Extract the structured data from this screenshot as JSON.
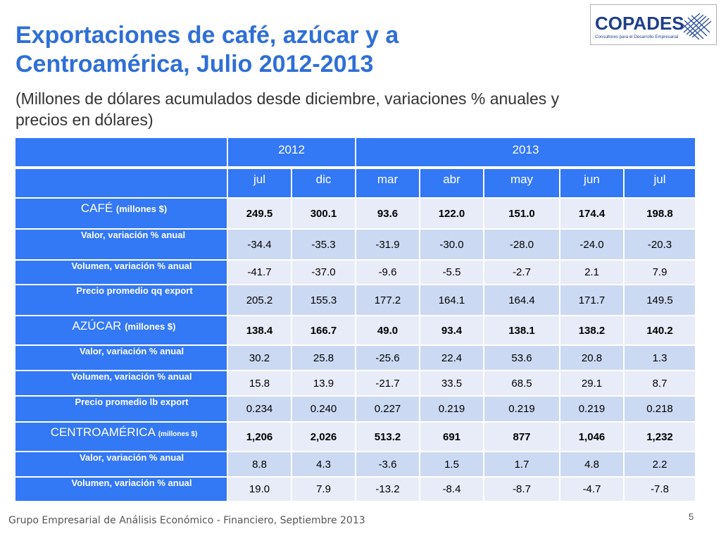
{
  "slide": {
    "title_line1": "Exportaciones de café, azúcar y a",
    "title_line2": "Centroamérica, Julio 2012-2013",
    "subtitle_line1": "(Millones de dólares acumulados desde diciembre, variaciones % anuales y",
    "subtitle_line2": "precios en dólares)"
  },
  "logo": {
    "name": "COPADES",
    "tagline": "Consultores para el Desarrollo Empresarial",
    "colors": {
      "text": "#1f3f8a",
      "mark": "#2a4f9c"
    }
  },
  "table": {
    "years": [
      "2012",
      "2013"
    ],
    "months": [
      "jul",
      "dic",
      "mar",
      "abr",
      "may",
      "jun",
      "jul"
    ],
    "rows": [
      {
        "label": "CAFÉ",
        "unit": "(millones $)",
        "values": [
          "249.5",
          "300.1",
          "93.6",
          "122.0",
          "151.0",
          "174.4",
          "198.8"
        ]
      },
      {
        "label": "Valor, variación % anual",
        "values": [
          "-34.4",
          "-35.3",
          "-31.9",
          "-30.0",
          "-28.0",
          "-24.0",
          "-20.3"
        ]
      },
      {
        "label": "Volumen, variación % anual",
        "values": [
          "-41.7",
          "-37.0",
          "-9.6",
          "-5.5",
          "-2.7",
          "2.1",
          "7.9"
        ]
      },
      {
        "label": "Precio promedio qq export",
        "values": [
          "205.2",
          "155.3",
          "177.2",
          "164.1",
          "164.4",
          "171.7",
          "149.5"
        ]
      },
      {
        "label": "AZÚCAR",
        "unit": "(millones $)",
        "values": [
          "138.4",
          "166.7",
          "49.0",
          "93.4",
          "138.1",
          "138.2",
          "140.2"
        ]
      },
      {
        "label": "Valor, variación % anual",
        "values": [
          "30.2",
          "25.8",
          "-25.6",
          "22.4",
          "53.6",
          "20.8",
          "1.3"
        ]
      },
      {
        "label": "Volumen, variación % anual",
        "values": [
          "15.8",
          "13.9",
          "-21.7",
          "33.5",
          "68.5",
          "29.1",
          "8.7"
        ]
      },
      {
        "label": "Precio promedio lb export",
        "values": [
          "0.234",
          "0.240",
          "0.227",
          "0.219",
          "0.219",
          "0.219",
          "0.218"
        ]
      },
      {
        "label": "CENTROAMÉRICA",
        "unit": "(millones $)",
        "values": [
          "1,206",
          "2,026",
          "513.2",
          "691",
          "877",
          "1,046",
          "1,232"
        ]
      },
      {
        "label": "Valor, variación % anual",
        "values": [
          "8.8",
          "4.3",
          "-3.6",
          "1.5",
          "1.7",
          "4.8",
          "2.2"
        ]
      },
      {
        "label": "Volumen, variación % anual",
        "values": [
          "19.0",
          "7.9",
          "-13.2",
          "-8.4",
          "-8.7",
          "-4.7",
          "-7.8"
        ]
      }
    ]
  },
  "footer": {
    "text": "Grupo Empresarial de Análisis Económico - Financiero, Septiembre 2013",
    "page": "5"
  },
  "colors": {
    "title": "#2f6fd6",
    "header_blue": "#3378f5",
    "row_shade_dark": "#ccd9f3",
    "row_shade_light": "#e7ecf8"
  }
}
